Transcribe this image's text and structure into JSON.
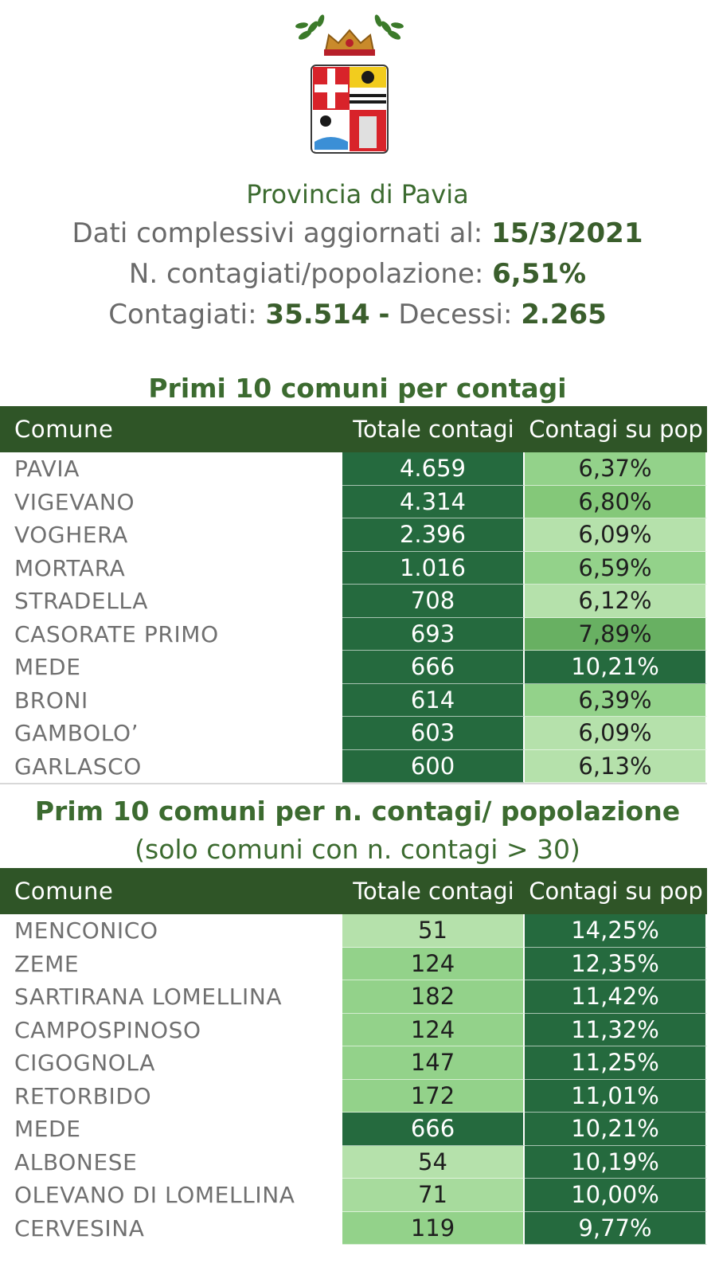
{
  "header": {
    "title": "Provincia di Pavia",
    "updated_label": "Dati complessivi aggiornati al:",
    "updated_value": "15/3/2021",
    "ratio_label": "N. contagiati/popolazione:",
    "ratio_value": "6,51%",
    "infected_label": "Contagiati:",
    "infected_value": "35.514",
    "separator": "-",
    "deaths_label": "Decessi:",
    "deaths_value": "2.265"
  },
  "table1": {
    "title": "Primi 10 comuni per contagi",
    "columns": [
      "Comune",
      "Totale contagi",
      "Contagi su pop"
    ],
    "rows": [
      {
        "name": "PAVIA",
        "total": "4.659",
        "pct": "6,37%"
      },
      {
        "name": "VIGEVANO",
        "total": "4.314",
        "pct": "6,80%"
      },
      {
        "name": "VOGHERA",
        "total": "2.396",
        "pct": "6,09%"
      },
      {
        "name": "MORTARA",
        "total": "1.016",
        "pct": "6,59%"
      },
      {
        "name": "STRADELLA",
        "total": "708",
        "pct": "6,12%"
      },
      {
        "name": "CASORATE PRIMO",
        "total": "693",
        "pct": "7,89%"
      },
      {
        "name": "MEDE",
        "total": "666",
        "pct": "10,21%"
      },
      {
        "name": "BRONI",
        "total": "614",
        "pct": "6,39%"
      },
      {
        "name": "GAMBOLO’",
        "total": "603",
        "pct": "6,09%"
      },
      {
        "name": "GARLASCO",
        "total": "600",
        "pct": "6,13%"
      }
    ]
  },
  "table2": {
    "title_line1": "Prim 10 comuni per n. contagi/ popolazione",
    "title_line2": "(solo comuni con n. contagi > 30)",
    "columns": [
      "Comune",
      "Totale contagi",
      "Contagi su pop"
    ],
    "rows": [
      {
        "name": "MENCONICO",
        "total": "51",
        "pct": "14,25%"
      },
      {
        "name": "ZEME",
        "total": "124",
        "pct": "12,35%"
      },
      {
        "name": "SARTIRANA LOMELLINA",
        "total": "182",
        "pct": "11,42%"
      },
      {
        "name": "CAMPOSPINOSO",
        "total": "124",
        "pct": "11,32%"
      },
      {
        "name": "CIGOGNOLA",
        "total": "147",
        "pct": "11,25%"
      },
      {
        "name": "RETORBIDO",
        "total": "172",
        "pct": "11,01%"
      },
      {
        "name": "MEDE",
        "total": "666",
        "pct": "10,21%"
      },
      {
        "name": "ALBONESE",
        "total": "54",
        "pct": "10,19%"
      },
      {
        "name": "OLEVANO DI LOMELLINA",
        "total": "71",
        "pct": "10,00%"
      },
      {
        "name": "CERVESINA",
        "total": "119",
        "pct": "9,77%"
      }
    ]
  }
}
